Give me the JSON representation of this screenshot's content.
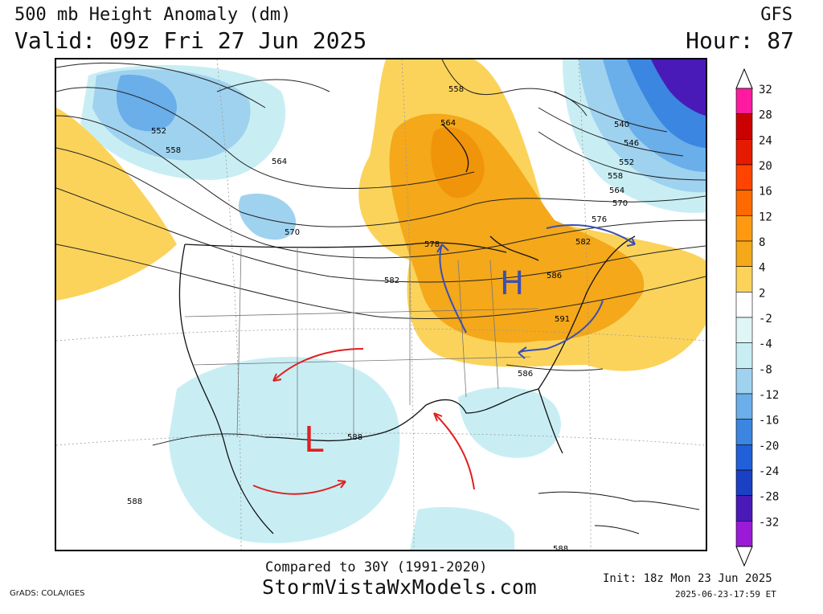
{
  "header": {
    "title": "500 mb Height Anomaly (dm)",
    "valid": "Valid: 09z Fri 27 Jun 2025",
    "model": "GFS",
    "hour": "Hour: 87"
  },
  "colorbar": {
    "labels": [
      "32",
      "28",
      "24",
      "20",
      "16",
      "12",
      "8",
      "4",
      "2",
      "-2",
      "-4",
      "-8",
      "-12",
      "-16",
      "-20",
      "-24",
      "-28",
      "-32"
    ],
    "colors": [
      "#ff1aa0",
      "#cc0000",
      "#e61a00",
      "#ff4400",
      "#ff6a00",
      "#ff9a10",
      "#f4a81a",
      "#fbd35b",
      "#ffffff",
      "#e0f6f6",
      "#c8eef4",
      "#9fd2ef",
      "#6aaeea",
      "#3a86e0",
      "#2060d8",
      "#1a40c4",
      "#4a1ab8",
      "#9a1ad8"
    ]
  },
  "map": {
    "contour_labels": [
      {
        "text": "552"
      },
      {
        "text": "558"
      },
      {
        "text": "564"
      },
      {
        "text": "570"
      },
      {
        "text": "582"
      },
      {
        "text": "578"
      },
      {
        "text": "558"
      },
      {
        "text": "564"
      },
      {
        "text": "540"
      },
      {
        "text": "546"
      },
      {
        "text": "552"
      },
      {
        "text": "558"
      },
      {
        "text": "564"
      },
      {
        "text": "570"
      },
      {
        "text": "576"
      },
      {
        "text": "582"
      },
      {
        "text": "586"
      },
      {
        "text": "591"
      },
      {
        "text": "586"
      },
      {
        "text": "588"
      },
      {
        "text": "588"
      },
      {
        "text": "588"
      }
    ],
    "annotations": {
      "high": "H",
      "low": "L"
    },
    "annotation_colors": {
      "high": "#3a4fb5",
      "low": "#e02020"
    }
  },
  "footer": {
    "comparison": "Compared to 30Y (1991-2020)",
    "site": "StormVistaWxModels.com",
    "init": "Init: 18z Mon 23 Jun 2025",
    "generated": "2025-06-23-17:59 ET",
    "grads": "GrADS: COLA/IGES"
  }
}
